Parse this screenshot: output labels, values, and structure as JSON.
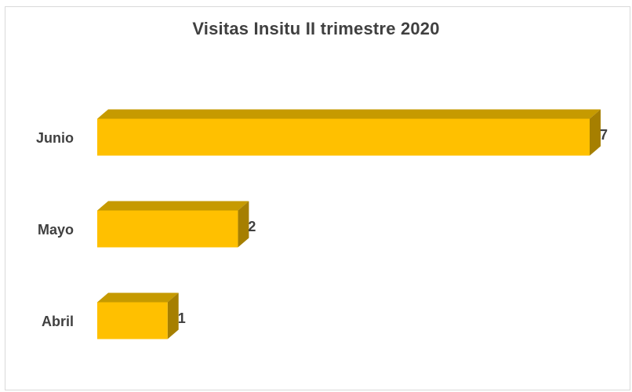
{
  "chart_data": {
    "type": "bar",
    "orientation": "horizontal",
    "style": "3d",
    "title": "Visitas Insitu II trimestre 2020",
    "categories": [
      "Abril",
      "Mayo",
      "Junio"
    ],
    "values": [
      1,
      2,
      7
    ],
    "xlabel": "",
    "ylabel": "",
    "xlim": [
      0,
      7
    ],
    "grid": false,
    "legend": "none",
    "data_labels": true,
    "colors": {
      "bar_front": "#FFC000",
      "bar_top": "#C69A00",
      "bar_side": "#A67F00",
      "text": "#404040"
    }
  }
}
